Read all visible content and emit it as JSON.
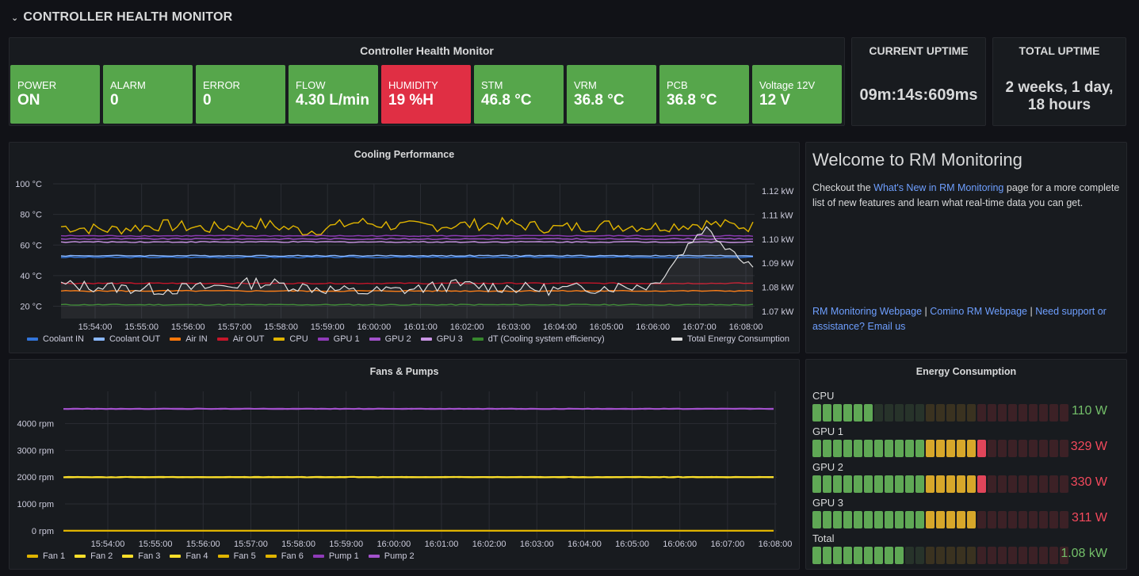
{
  "row": {
    "title": "CONTROLLER HEALTH MONITOR"
  },
  "health": {
    "title": "Controller Health Monitor",
    "tiles": [
      {
        "label": "POWER",
        "value": "ON",
        "status": "ok"
      },
      {
        "label": "ALARM",
        "value": "0",
        "status": "ok"
      },
      {
        "label": "ERROR",
        "value": "0",
        "status": "ok"
      },
      {
        "label": "FLOW",
        "value": "4.30 L/min",
        "status": "ok"
      },
      {
        "label": "HUMIDITY",
        "value": "19 %H",
        "status": "alert"
      },
      {
        "label": "STM",
        "value": "46.8 °C",
        "status": "ok"
      },
      {
        "label": "VRM",
        "value": "36.8 °C",
        "status": "ok"
      },
      {
        "label": "PCB",
        "value": "36.8 °C",
        "status": "ok"
      },
      {
        "label": "Voltage 12V",
        "value": "12 V",
        "status": "ok"
      }
    ]
  },
  "current_uptime": {
    "title": "CURRENT UPTIME",
    "value": "09m:14s:609ms"
  },
  "total_uptime": {
    "title": "TOTAL UPTIME",
    "value_line1": "2 weeks, 1 day,",
    "value_line2": "18 hours"
  },
  "welcome": {
    "title": "Welcome to RM Monitoring",
    "text_before": "Checkout the ",
    "link_text": "What's New in RM Monitoring",
    "text_after": " page for a more complete list of new features and learn what real-time data you can get.",
    "footer_link1": "RM Monitoring Webpage",
    "sep1": " | ",
    "footer_link2": "Comino RM Webpage",
    "sep2": " | ",
    "footer_link3": "Need support or assistance? Email us"
  },
  "energy": {
    "title": "Energy Consumption",
    "bars": [
      {
        "label": "CPU",
        "value": "110 W",
        "fraction": 0.25,
        "value_color": "#73bf69"
      },
      {
        "label": "GPU 1",
        "value": "329 W",
        "fraction": 0.67,
        "value_color": "#f2495c"
      },
      {
        "label": "GPU 2",
        "value": "330 W",
        "fraction": 0.67,
        "value_color": "#f2495c"
      },
      {
        "label": "GPU 3",
        "value": "311 W",
        "fraction": 0.64,
        "value_color": "#f2495c"
      },
      {
        "label": "Total",
        "value": "1.08 kW",
        "fraction": 0.37,
        "value_color": "#73bf69"
      }
    ]
  },
  "colors": {
    "ok": "#56a64b",
    "alert": "#e02f44",
    "coolant_in": "#3274d9",
    "coolant_out": "#8ab8ff",
    "air_in": "#ff780a",
    "air_out": "#c4162a",
    "cpu": "#e0b400",
    "gpu1": "#8f3bb8",
    "gpu2": "#a352cc",
    "gpu3": "#ca95e5",
    "dt": "#37872d",
    "energy": "#e0e0e0",
    "fan": "#fade2a",
    "pump": "#8f3bb8"
  },
  "chart_data": [
    {
      "type": "line",
      "title": "Cooling Performance",
      "x": [
        "15:54:00",
        "15:55:00",
        "15:56:00",
        "15:57:00",
        "15:58:00",
        "15:59:00",
        "16:00:00",
        "16:01:00",
        "16:02:00",
        "16:03:00",
        "16:04:00",
        "16:05:00",
        "16:06:00",
        "16:07:00",
        "16:08:00"
      ],
      "y_left_ticks": [
        "100 °C",
        "80 °C",
        "60 °C",
        "40 °C",
        "20 °C"
      ],
      "y_left_range": [
        12,
        100
      ],
      "y_right_ticks": [
        "1.12 kW",
        "1.11 kW",
        "1.10 kW",
        "1.09 kW",
        "1.08 kW",
        "1.07 kW"
      ],
      "y_right_range": [
        1.067,
        1.123
      ],
      "legend_left": [
        "Coolant IN",
        "Coolant OUT",
        "Air IN",
        "Air OUT",
        "CPU",
        "GPU 1",
        "GPU 2",
        "GPU 3",
        "dT (Cooling system efficiency)"
      ],
      "legend_right": [
        "Total Energy Consumption"
      ],
      "series": [
        {
          "name": "Coolant IN",
          "color_key": "coolant_in",
          "values": [
            52,
            52,
            52,
            52,
            52,
            52,
            52,
            52,
            52,
            52,
            52,
            52,
            52,
            52,
            52
          ]
        },
        {
          "name": "Coolant OUT",
          "color_key": "coolant_out",
          "values": [
            53,
            53,
            53,
            53,
            53,
            53,
            53,
            53,
            53,
            53,
            53,
            53,
            53,
            53,
            53
          ]
        },
        {
          "name": "Air IN",
          "color_key": "air_in",
          "values": [
            30,
            30,
            30,
            30,
            30,
            30,
            30,
            30,
            30,
            30,
            30,
            30,
            30,
            30,
            30
          ]
        },
        {
          "name": "Air OUT",
          "color_key": "air_out",
          "values": [
            35,
            35,
            35,
            35,
            35,
            35,
            35,
            35,
            35,
            35,
            35,
            35,
            35,
            35,
            35
          ]
        },
        {
          "name": "CPU",
          "color_key": "cpu",
          "values": [
            72,
            70,
            73,
            71,
            74,
            69,
            75,
            72,
            73,
            74,
            71,
            73,
            72,
            74,
            72
          ]
        },
        {
          "name": "GPU 1",
          "color_key": "gpu1",
          "values": [
            66,
            66,
            66,
            66,
            66,
            66,
            66,
            66,
            66,
            66,
            66,
            66,
            66,
            66,
            66
          ]
        },
        {
          "name": "GPU 2",
          "color_key": "gpu2",
          "values": [
            64,
            64,
            64,
            64,
            64,
            64,
            64,
            64,
            64,
            64,
            64,
            64,
            64,
            64,
            64
          ]
        },
        {
          "name": "GPU 3",
          "color_key": "gpu3",
          "values": [
            62,
            62,
            62,
            62,
            62,
            62,
            62,
            62,
            62,
            62,
            62,
            62,
            62,
            62,
            62
          ]
        },
        {
          "name": "dT (Cooling system efficiency)",
          "color_key": "dt",
          "values": [
            21,
            21,
            21,
            21,
            21,
            21,
            21,
            21,
            21,
            21,
            21,
            21,
            21,
            21,
            21
          ]
        },
        {
          "name": "Total Energy Consumption",
          "color_key": "energy",
          "axis": "right",
          "values": [
            1.081,
            1.08,
            1.079,
            1.08,
            1.082,
            1.08,
            1.078,
            1.079,
            1.081,
            1.08,
            1.079,
            1.08,
            1.081,
            1.105,
            1.089
          ]
        }
      ],
      "grid": true,
      "legend_placement": "bottom"
    },
    {
      "type": "line",
      "title": "Fans & Pumps",
      "x": [
        "15:54:00",
        "15:55:00",
        "15:56:00",
        "15:57:00",
        "15:58:00",
        "15:59:00",
        "16:00:00",
        "16:01:00",
        "16:02:00",
        "16:03:00",
        "16:04:00",
        "16:05:00",
        "16:06:00",
        "16:07:00",
        "16:08:00"
      ],
      "y_ticks": [
        "4000 rpm",
        "3000 rpm",
        "2000 rpm",
        "1000 rpm",
        "0 rpm"
      ],
      "y_range": [
        -300,
        5200
      ],
      "legend": [
        "Fan 1",
        "Fan 2",
        "Fan 3",
        "Fan 4",
        "Fan 5",
        "Fan 6",
        "Pump 1",
        "Pump 2"
      ],
      "series": [
        {
          "name": "Fan 1",
          "color_key": "cpu",
          "values": [
            0,
            0,
            0,
            0,
            0,
            0,
            0,
            0,
            0,
            0,
            0,
            0,
            0,
            0,
            0
          ]
        },
        {
          "name": "Fan 2",
          "color_key": "fan",
          "values": [
            2000,
            2000,
            2000,
            2000,
            2000,
            2000,
            2000,
            2000,
            2000,
            2000,
            2000,
            2000,
            2000,
            2000,
            2000
          ]
        },
        {
          "name": "Fan 3",
          "color_key": "fan",
          "values": [
            2000,
            2000,
            2000,
            2000,
            2000,
            2000,
            2000,
            2000,
            2000,
            2000,
            2000,
            2000,
            2000,
            2000,
            2000
          ]
        },
        {
          "name": "Fan 4",
          "color_key": "fan",
          "values": [
            2000,
            2000,
            2000,
            2000,
            2000,
            2000,
            2000,
            2000,
            2000,
            2000,
            2000,
            2000,
            2000,
            2000,
            2000
          ]
        },
        {
          "name": "Fan 5",
          "color_key": "cpu",
          "values": [
            0,
            0,
            0,
            0,
            0,
            0,
            0,
            0,
            0,
            0,
            0,
            0,
            0,
            0,
            0
          ]
        },
        {
          "name": "Fan 6",
          "color_key": "cpu",
          "values": [
            0,
            0,
            0,
            0,
            0,
            0,
            0,
            0,
            0,
            0,
            0,
            0,
            0,
            0,
            0
          ]
        },
        {
          "name": "Pump 1",
          "color_key": "pump",
          "values": [
            4550,
            4550,
            4550,
            4550,
            4550,
            4550,
            4550,
            4550,
            4550,
            4550,
            4550,
            4550,
            4550,
            4550,
            4550
          ]
        },
        {
          "name": "Pump 2",
          "color_key": "gpu2",
          "values": [
            4550,
            4550,
            4550,
            4550,
            4550,
            4550,
            4550,
            4550,
            4550,
            4550,
            4550,
            4550,
            4550,
            4550,
            4550
          ]
        }
      ],
      "grid": true,
      "legend_placement": "bottom"
    }
  ]
}
